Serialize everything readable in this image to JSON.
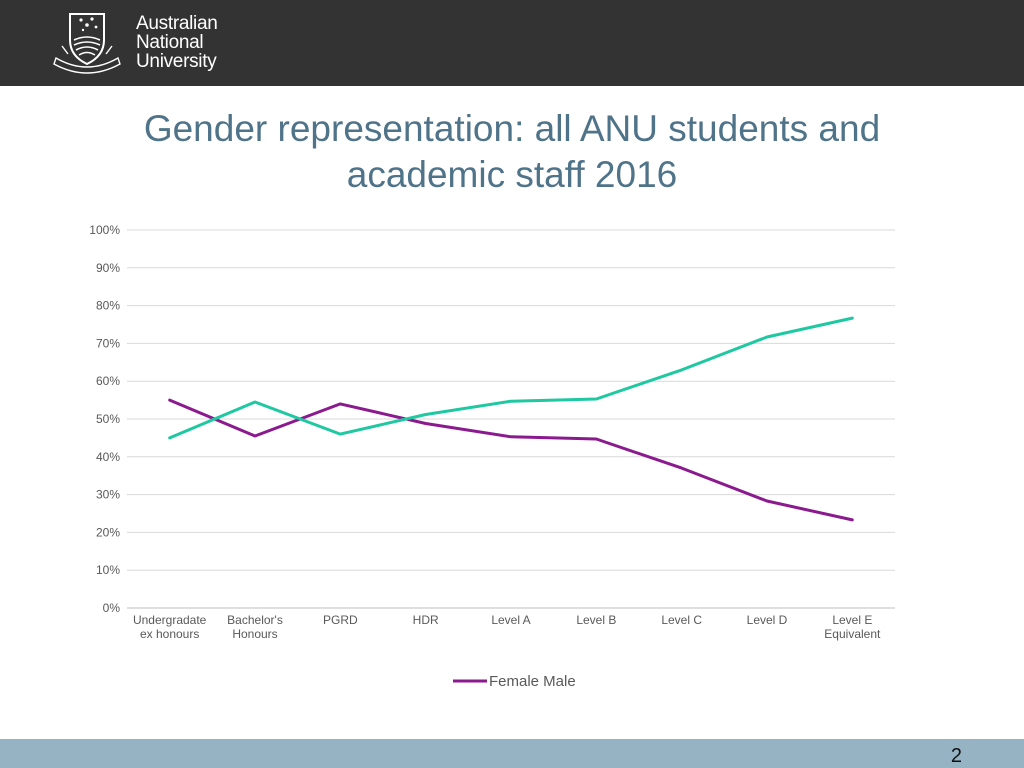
{
  "header": {
    "logo_lines": [
      "Australian",
      "National",
      "University"
    ],
    "logo_icon": "anu-crest-icon"
  },
  "slide": {
    "title_line1": "Gender representation: all ANU students and",
    "title_line2": "academic staff 2016",
    "page_number": "2"
  },
  "colors": {
    "header_bg": "#333333",
    "title": "#4f7389",
    "footer_bg": "#95b3c3",
    "female": "#8b1a8f",
    "male": "#1ec8a0"
  },
  "chart_data": {
    "type": "line",
    "categories": [
      [
        "Undergradate",
        "ex honours"
      ],
      [
        "Bachelor's",
        "Honours"
      ],
      [
        "PGRD"
      ],
      [
        "HDR"
      ],
      [
        "Level A"
      ],
      [
        "Level B"
      ],
      [
        "Level C"
      ],
      [
        "Level D"
      ],
      [
        "Level E",
        "Equivalent"
      ]
    ],
    "series": [
      {
        "color": "#8b1a8f",
        "values": [
          55,
          45.5,
          54,
          48.8,
          45.3,
          44.7,
          37,
          28.3,
          23.3
        ]
      },
      {
        "color": "#1ec8a0",
        "values": [
          45,
          54.5,
          46,
          51.2,
          54.7,
          55.3,
          63,
          71.7,
          76.7
        ]
      }
    ],
    "legend_label": "Female Male",
    "legend_placement": "bottom",
    "ylim": [
      0,
      100
    ],
    "yticks": [
      "0%",
      "10%",
      "20%",
      "30%",
      "40%",
      "50%",
      "60%",
      "70%",
      "80%",
      "90%",
      "100%"
    ],
    "grid": true
  }
}
